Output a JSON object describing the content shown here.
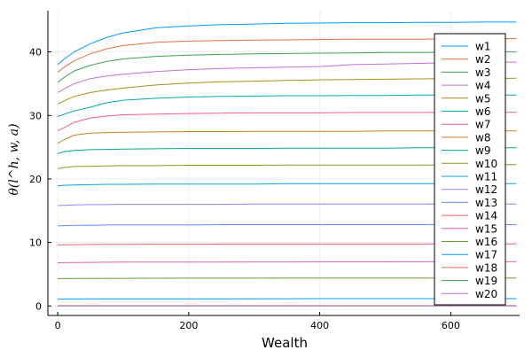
{
  "chart_data": {
    "type": "line",
    "title": "",
    "xlabel": "Wealth",
    "ylabel": "θ(l^h, w, a)",
    "xlim": [
      -15,
      705
    ],
    "ylim": [
      -1.5,
      46.5
    ],
    "xticks": [
      0,
      200,
      400,
      600
    ],
    "yticks": [
      0,
      10,
      20,
      30,
      40
    ],
    "x_tick_labels": [
      "0",
      "200",
      "400",
      "600"
    ],
    "y_tick_labels": [
      "0",
      "10",
      "20",
      "30",
      "40"
    ],
    "grid": true,
    "legend_position": "top-right",
    "x": [
      0,
      10,
      25,
      50,
      75,
      100,
      150,
      200,
      250,
      300,
      350,
      400,
      450,
      500,
      550,
      600,
      650,
      700
    ],
    "series": [
      {
        "name": "w1",
        "color": "#009AFA",
        "values": [
          38.0,
          38.9,
          40.0,
          41.3,
          42.3,
          43.0,
          43.8,
          44.1,
          44.3,
          44.4,
          44.5,
          44.55,
          44.6,
          44.6,
          44.65,
          44.65,
          44.7,
          44.7
        ]
      },
      {
        "name": "w2",
        "color": "#E36F47",
        "values": [
          36.8,
          37.6,
          38.6,
          39.7,
          40.5,
          41.0,
          41.5,
          41.7,
          41.8,
          41.85,
          41.9,
          41.95,
          42.0,
          42.0,
          42.0,
          42.05,
          42.1,
          42.1
        ]
      },
      {
        "name": "w3",
        "color": "#3EA44E",
        "values": [
          35.2,
          36.0,
          37.0,
          37.9,
          38.5,
          38.9,
          39.3,
          39.5,
          39.6,
          39.7,
          39.75,
          39.8,
          39.85,
          39.9,
          39.9,
          39.95,
          40.0,
          40.0
        ]
      },
      {
        "name": "w4",
        "color": "#C371D2",
        "values": [
          33.6,
          34.2,
          35.0,
          35.8,
          36.2,
          36.5,
          36.9,
          37.2,
          37.4,
          37.5,
          37.6,
          37.7,
          38.0,
          38.1,
          38.2,
          38.3,
          38.4,
          38.4
        ]
      },
      {
        "name": "w5",
        "color": "#AC8D18",
        "values": [
          31.8,
          32.3,
          33.0,
          33.6,
          34.0,
          34.3,
          34.8,
          35.1,
          35.3,
          35.4,
          35.5,
          35.6,
          35.65,
          35.7,
          35.75,
          35.8,
          35.8,
          35.85
        ]
      },
      {
        "name": "w6",
        "color": "#00A9AD",
        "values": [
          29.8,
          30.2,
          30.7,
          31.3,
          32.0,
          32.4,
          32.7,
          32.9,
          33.0,
          33.05,
          33.1,
          33.1,
          33.15,
          33.15,
          33.2,
          33.2,
          33.2,
          33.2
        ]
      },
      {
        "name": "w7",
        "color": "#ED5D93",
        "values": [
          27.6,
          28.1,
          28.9,
          29.6,
          29.9,
          30.1,
          30.2,
          30.3,
          30.35,
          30.4,
          30.4,
          30.4,
          30.45,
          30.45,
          30.45,
          30.5,
          30.5,
          30.5
        ]
      },
      {
        "name": "w8",
        "color": "#C68225",
        "values": [
          25.6,
          26.2,
          26.9,
          27.2,
          27.3,
          27.35,
          27.4,
          27.45,
          27.45,
          27.5,
          27.5,
          27.5,
          27.5,
          27.55,
          27.55,
          27.55,
          27.55,
          27.55
        ]
      },
      {
        "name": "w9",
        "color": "#00A98D",
        "values": [
          24.0,
          24.3,
          24.5,
          24.6,
          24.65,
          24.7,
          24.75,
          24.8,
          24.8,
          24.8,
          24.85,
          24.85,
          24.85,
          24.85,
          24.9,
          24.9,
          24.9,
          24.9
        ]
      },
      {
        "name": "w10",
        "color": "#8E971D",
        "values": [
          21.6,
          21.8,
          21.95,
          22.0,
          22.05,
          22.1,
          22.1,
          22.15,
          22.15,
          22.15,
          22.2,
          22.2,
          22.2,
          22.2,
          22.2,
          22.2,
          22.25,
          22.25
        ]
      },
      {
        "name": "w11",
        "color": "#00A8CB",
        "values": [
          18.9,
          19.0,
          19.05,
          19.1,
          19.15,
          19.15,
          19.2,
          19.2,
          19.2,
          19.2,
          19.25,
          19.25,
          19.25,
          19.25,
          19.25,
          19.25,
          19.25,
          19.25
        ]
      },
      {
        "name": "w12",
        "color": "#9B7FE9",
        "values": [
          15.8,
          15.85,
          15.9,
          15.95,
          15.95,
          16.0,
          16.0,
          16.0,
          16.0,
          16.05,
          16.05,
          16.05,
          16.05,
          16.05,
          16.05,
          16.05,
          16.05,
          16.05
        ]
      },
      {
        "name": "w13",
        "color": "#618DF6",
        "values": [
          12.6,
          12.65,
          12.7,
          12.7,
          12.75,
          12.75,
          12.75,
          12.75,
          12.8,
          12.8,
          12.8,
          12.8,
          12.8,
          12.8,
          12.8,
          12.8,
          12.8,
          12.8
        ]
      },
      {
        "name": "w14",
        "color": "#F05F73",
        "values": [
          9.6,
          9.62,
          9.65,
          9.68,
          9.7,
          9.7,
          9.72,
          9.72,
          9.74,
          9.74,
          9.75,
          9.75,
          9.75,
          9.75,
          9.75,
          9.76,
          9.76,
          9.76
        ]
      },
      {
        "name": "w15",
        "color": "#DD64B5",
        "values": [
          6.8,
          6.82,
          6.84,
          6.86,
          6.88,
          6.9,
          6.9,
          6.92,
          6.92,
          6.93,
          6.93,
          6.94,
          6.94,
          6.94,
          6.95,
          6.95,
          6.95,
          6.95
        ]
      },
      {
        "name": "w16",
        "color": "#6B9E32",
        "values": [
          4.3,
          4.31,
          4.32,
          4.33,
          4.34,
          4.35,
          4.36,
          4.37,
          4.38,
          4.38,
          4.39,
          4.39,
          4.4,
          4.4,
          4.4,
          4.4,
          4.4,
          4.4
        ]
      },
      {
        "name": "w17",
        "color": "#009AFA",
        "values": [
          1.1,
          1.1,
          1.1,
          1.11,
          1.11,
          1.12,
          1.12,
          1.13,
          1.13,
          1.14,
          1.14,
          1.15,
          1.15,
          1.15,
          1.15,
          1.15,
          1.15,
          1.15
        ]
      },
      {
        "name": "w18",
        "color": "#E36F47",
        "values": [
          0.05,
          0.05,
          0.05,
          0.05,
          0.05,
          0.05,
          0.05,
          0.05,
          0.05,
          0.05,
          0.05,
          0.05,
          0.05,
          0.05,
          0.05,
          0.05,
          0.05,
          0.05
        ]
      },
      {
        "name": "w19",
        "color": "#3EA44E",
        "values": [
          0.02,
          0.02,
          0.02,
          0.02,
          0.02,
          0.02,
          0.02,
          0.02,
          0.02,
          0.02,
          0.02,
          0.02,
          0.02,
          0.02,
          0.02,
          0.02,
          0.02,
          0.02
        ]
      },
      {
        "name": "w20",
        "color": "#C371D2",
        "values": [
          0.0,
          0.0,
          0.0,
          0.0,
          0.0,
          0.0,
          0.0,
          0.0,
          0.0,
          0.0,
          0.0,
          0.0,
          0.0,
          0.0,
          0.0,
          0.0,
          0.0,
          0.0
        ]
      }
    ]
  }
}
